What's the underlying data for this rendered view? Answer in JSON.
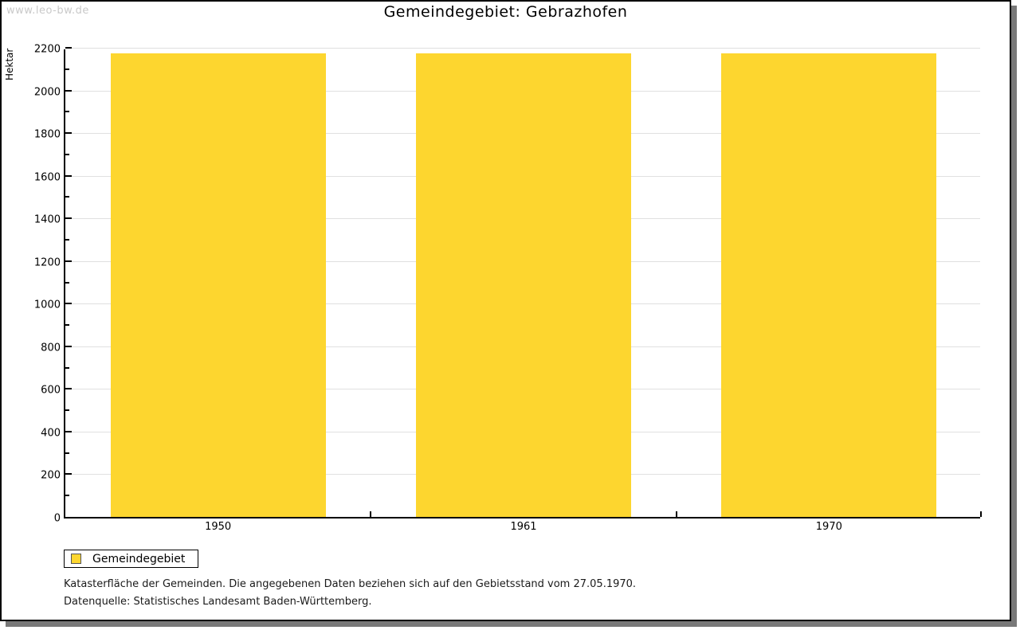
{
  "watermark": {
    "text": "www.leo-bw.de"
  },
  "chart_data": {
    "type": "bar",
    "title": "Gemeindegebiet: Gebrazhofen",
    "ylabel": "Hektar",
    "xlabel": "",
    "categories": [
      "1950",
      "1961",
      "1970"
    ],
    "series": [
      {
        "name": "Gemeindegebiet",
        "color": "#fdd62f",
        "values": [
          2175,
          2175,
          2175
        ]
      }
    ],
    "ylim": [
      0,
      2200
    ],
    "y_major_step": 200,
    "y_minor_step": 100,
    "grid": "horizontal gridlines at major ticks",
    "legend_position": "bottom-left"
  },
  "legend": {
    "items": [
      {
        "label": "Gemeindegebiet",
        "color": "#fdd62f"
      }
    ]
  },
  "footnotes": {
    "line1": "Katasterfläche der Gemeinden. Die angegebenen Daten beziehen sich auf den Gebietsstand vom 27.05.1970.",
    "line2": "Datenquelle: Statistisches Landesamt Baden-Württemberg."
  },
  "colors": {
    "bar": "#fdd62f",
    "gridline": "#e0e0e0",
    "axis": "#000000",
    "shadow": "#787878",
    "watermark": "#c9c9c9",
    "background": "#ffffff"
  }
}
